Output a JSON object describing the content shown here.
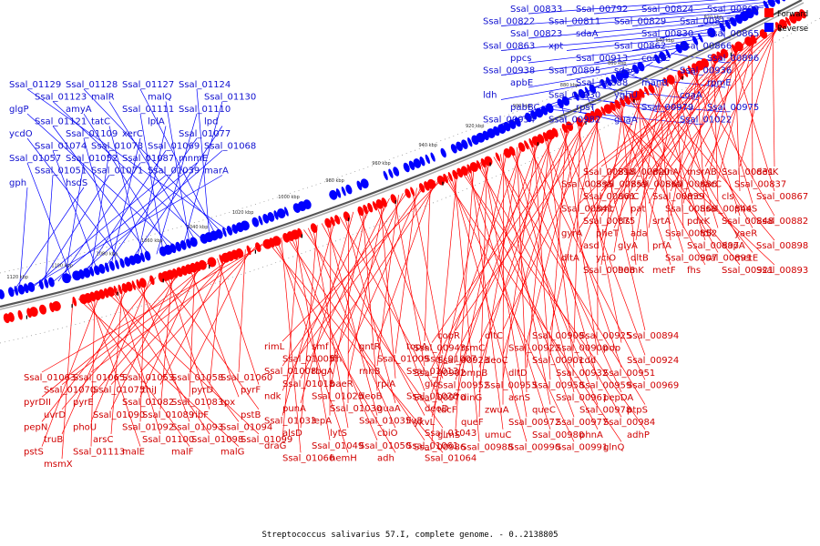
{
  "caption": "Streptococcus salivarius 57.I, complete genome. - 0..2138805",
  "legend": [
    {
      "label": "Forward",
      "color": "#ff0000"
    },
    {
      "label": "Reverse",
      "color": "#0000ff"
    }
  ],
  "ticks": [
    "800 kbp",
    "820 kbp",
    "840 kbp",
    "860 kbp",
    "880 kbp",
    "900 kbp",
    "920 kbp",
    "940 kbp",
    "960 kbp",
    "980 kbp",
    "1000 kbp",
    "1020 kbp",
    "1040 kbp",
    "1060 kbp",
    "1080 kbp",
    "1100 kbp",
    "1120 kbp"
  ],
  "reverse_labels": [
    "Ssal_00833",
    "Ssal_00792",
    "Ssal_00824",
    "Ssal_00809",
    "Ssal_00822",
    "Ssal_00811",
    "Ssal_00829",
    "Ssal_00817",
    "Ssal_00823",
    "sdaA",
    "Ssal_00830",
    "Ssal_00865",
    "Ssal_00863",
    "xpt",
    "Ssal_00862",
    "Ssal_00866",
    "ppcs",
    "Ssal_00913",
    "coaBC",
    "Ssal_00896",
    "Ssal_00938",
    "Ssal_00895",
    "sdaA",
    "Ssal_00936",
    "apbE",
    "Ssal_00888",
    "manB",
    "rpmE",
    "ldh",
    "Ssal_00930",
    "yghU",
    "coaA",
    "pabBC",
    "rpsT",
    "Ssal_00979",
    "Ssal_00975",
    "Ssal_00954",
    "Ssal_00982",
    "guaA",
    "Ssal_01022",
    "Ssal_01129",
    "Ssal_01128",
    "Ssal_01127",
    "Ssal_01124",
    "Ssal_01123",
    "malR",
    "malQ",
    "Ssal_01130",
    "glgP",
    "amyA",
    "Ssal_01111",
    "Ssal_01110",
    "Ssal_01121",
    "tatC",
    "lplA",
    "lpd",
    "ycdO",
    "Ssal_01109",
    "xerC",
    "Ssal_01077",
    "Ssal_01074",
    "Ssal_01073",
    "Ssal_01069",
    "Ssal_01068",
    "Ssal_01057",
    "Ssal_01052",
    "Ssal_01087",
    "mnmE",
    "Ssal_01051",
    "Ssal_01071",
    "Ssal_01039",
    "marA",
    "gph",
    "hsdS"
  ],
  "forward_labels": [
    "Ssal_00818",
    "Ssal_00820",
    "manA",
    "msrAB",
    "Ssal_00831",
    "desK",
    "Ssal_00835",
    "Ssal_00859",
    "Ssal_00860",
    "Ssal_00836",
    "sacC",
    "Ssal_00837",
    "Ssal_00861",
    "uvrC",
    "Ssal_00839",
    "rnc",
    "cls",
    "Ssal_00867",
    "Ssal_00841",
    "smc",
    "pat",
    "Ssal_00868",
    "Ssal_00844",
    "pheS",
    "Ssal_00875",
    "cls",
    "srtA",
    "pdxK",
    "Ssal_00848",
    "Ssal_00882",
    "gyrA",
    "pheT",
    "ada",
    "Ssal_00852",
    "tdk",
    "yaeR",
    "asd",
    "glyA",
    "prfA",
    "Ssal_00897",
    "dapA",
    "Ssal_00898",
    "dltA",
    "yciO",
    "dltB",
    "Ssal_00907",
    "Ssal_00891",
    "metE",
    "Ssal_00908",
    "hemK",
    "metF",
    "fhs",
    "Ssal_00921",
    "Ssal_00893",
    "copR",
    "dltC",
    "Ssal_00909",
    "Ssal_00925",
    "Ssal_00894",
    "Ssal_00943",
    "rsmC",
    "Ssal_00922",
    "Ssal_00900",
    "pdp",
    "Ssal_00923",
    "deoC",
    "Ssal_00901",
    "cdd",
    "Ssal_00924",
    "Ssal_00902",
    "bmpB",
    "dltD",
    "Ssal_00932",
    "Ssal_00951",
    "Ssal_00952",
    "Ssal_00953",
    "Ssal_00958",
    "Ssal_00959",
    "Ssal_00969",
    "Ssal_00970",
    "dinG",
    "asnS",
    "Ssal_00961",
    "pepDA",
    "tdcF",
    "zwuA",
    "queC",
    "Ssal_00978",
    "ptpS",
    "ykvL",
    "queF",
    "Ssal_00972",
    "Ssal_00977",
    "Ssal_00984",
    "glmS",
    "umuC",
    "Ssal_00980",
    "phnA",
    "adhP",
    "Ssal_00986",
    "Ssal_00988",
    "Ssal_00990",
    "Ssal_00991",
    "glnQ",
    "rimL",
    "smf",
    "gntR",
    "topA",
    "Ssal_01005",
    "ffh",
    "Ssal_01009",
    "Ssal_01007",
    "Ssal_01008",
    "rbgA",
    "rnhB",
    "Ssal_01013",
    "Ssal_01018",
    "baeR",
    "rpiA",
    "gid",
    "ndk",
    "Ssal_01025",
    "deoB",
    "Ssal_01028",
    "punA",
    "Ssal_01030",
    "guaA",
    "deoD",
    "Ssal_01033",
    "lepA",
    "Ssal_01035",
    "ilvB",
    "alsD",
    "lytS",
    "cbiO",
    "Ssal_01043",
    "draG",
    "Ssal_01049",
    "Ssal_01050",
    "Ssal_01061",
    "Ssal_01066",
    "hemH",
    "adh",
    "Ssal_01064",
    "Ssal_01063",
    "Ssal_01065",
    "Ssal_01053",
    "Ssal_01058",
    "Ssal_01060",
    "Ssal_01070",
    "Ssal_01075",
    "thiJ",
    "pyrD",
    "pyrF",
    "pyrDII",
    "pyrE",
    "Ssal_01082",
    "Ssal_01083",
    "tpx",
    "uvrD",
    "Ssal_01090",
    "Ssal_01089",
    "ribF",
    "pstB",
    "pepN",
    "phoU",
    "Ssal_01092",
    "Ssal_01093",
    "Ssal_01094",
    "truB",
    "arsC",
    "Ssal_01100",
    "Ssal_01098",
    "Ssal_01099",
    "pstS",
    "Ssal_01113",
    "malE",
    "malF",
    "malG",
    "msmX"
  ]
}
